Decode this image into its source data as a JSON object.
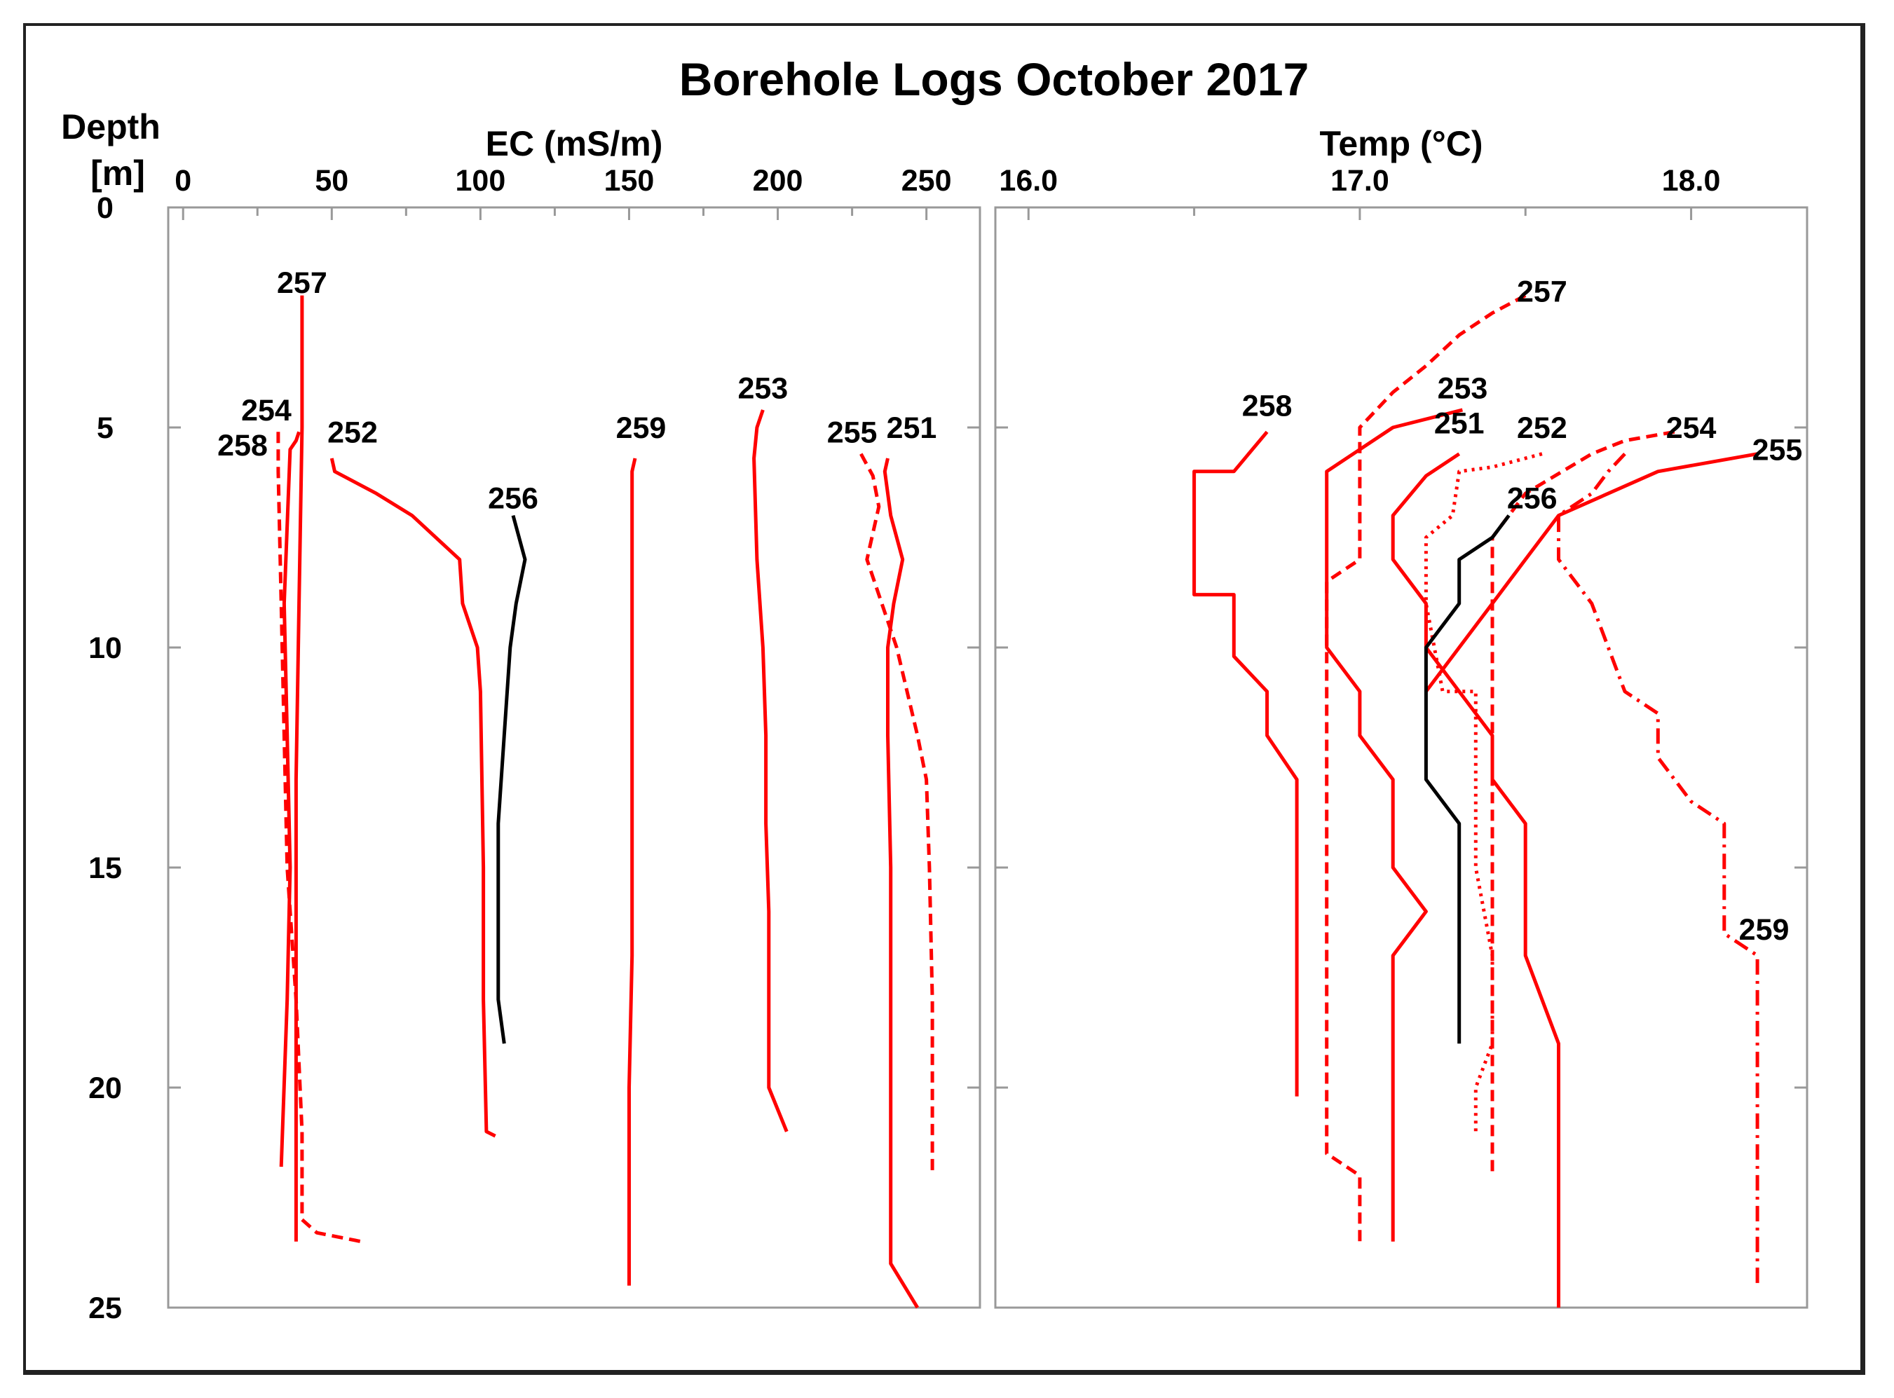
{
  "title": "Borehole Logs October 2017",
  "depth_label_line1": "Depth",
  "depth_label_line2": "[m]",
  "colors": {
    "red": "#ff0000",
    "black": "#000000",
    "frame": "#222222",
    "axis": "#999999"
  },
  "chart_data": [
    {
      "type": "line",
      "panel": "EC",
      "xlabel": "EC (mS/m)",
      "ylabel": "Depth [m]",
      "xlim": [
        -5,
        268
      ],
      "ylim": [
        0,
        25
      ],
      "y_inverted": true,
      "x_axis_position": "top",
      "grid": false,
      "xticks": [
        0,
        50,
        100,
        150,
        200,
        250
      ],
      "xtick_labels": [
        "0",
        "50",
        "100",
        "150",
        "200",
        "250"
      ],
      "yticks": [
        0,
        5,
        10,
        15,
        20,
        25
      ],
      "ytick_labels": [
        "0",
        "5",
        "10",
        "15",
        "20",
        "25"
      ],
      "series": [
        {
          "name": "257",
          "color": "#ff0000",
          "dash": "solid",
          "label_at": [
            40,
            1.7
          ],
          "points": [
            [
              40,
              2
            ],
            [
              40,
              5
            ],
            [
              39,
              9
            ],
            [
              38,
              13
            ],
            [
              38,
              17
            ],
            [
              38,
              21
            ],
            [
              38,
              23.5
            ]
          ]
        },
        {
          "name": "254",
          "color": "#ff0000",
          "dash": "solid",
          "label_at": [
            28,
            4.6
          ],
          "points": [
            [
              39,
              5.1
            ],
            [
              38,
              5.3
            ],
            [
              36,
              5.5
            ],
            [
              34,
              9
            ],
            [
              35,
              12
            ],
            [
              36,
              15
            ],
            [
              35,
              18
            ],
            [
              33,
              21.8
            ]
          ]
        },
        {
          "name": "258",
          "color": "#ff0000",
          "dash": "dash",
          "label_at": [
            20,
            5.4
          ],
          "points": [
            [
              32,
              5.1
            ],
            [
              32,
              6
            ],
            [
              33,
              9
            ],
            [
              34,
              12
            ],
            [
              35,
              15
            ],
            [
              38,
              18
            ],
            [
              40,
              21
            ],
            [
              40,
              23
            ],
            [
              45,
              23.3
            ],
            [
              60,
              23.5
            ]
          ]
        },
        {
          "name": "252",
          "color": "#ff0000",
          "dash": "solid",
          "label_at": [
            57,
            5.1
          ],
          "points": [
            [
              50,
              5.7
            ],
            [
              51,
              6
            ],
            [
              65,
              6.5
            ],
            [
              77,
              7
            ],
            [
              93,
              8
            ],
            [
              94,
              9
            ],
            [
              99,
              10
            ],
            [
              100,
              11
            ],
            [
              101,
              15
            ],
            [
              101,
              18
            ],
            [
              102,
              21
            ],
            [
              105,
              21.1
            ]
          ]
        },
        {
          "name": "256",
          "color": "#000000",
          "dash": "solid",
          "label_at": [
            111,
            6.6
          ],
          "points": [
            [
              111,
              7
            ],
            [
              115,
              8
            ],
            [
              112,
              9
            ],
            [
              110,
              10
            ],
            [
              108,
              12
            ],
            [
              106,
              14
            ],
            [
              106,
              16
            ],
            [
              106,
              18
            ],
            [
              108,
              19
            ]
          ]
        },
        {
          "name": "259",
          "color": "#ff0000",
          "dash": "solid",
          "label_at": [
            154,
            5
          ],
          "points": [
            [
              152,
              5.7
            ],
            [
              151,
              6
            ],
            [
              151,
              10
            ],
            [
              151,
              15
            ],
            [
              151,
              17
            ],
            [
              150,
              20
            ],
            [
              150,
              24.5
            ]
          ]
        },
        {
          "name": "253",
          "color": "#ff0000",
          "dash": "solid",
          "label_at": [
            195,
            4.1
          ],
          "points": [
            [
              195,
              4.6
            ],
            [
              193,
              5
            ],
            [
              192,
              5.7
            ],
            [
              193,
              8
            ],
            [
              195,
              10
            ],
            [
              196,
              12
            ],
            [
              196,
              14
            ],
            [
              197,
              16
            ],
            [
              197,
              18
            ],
            [
              197,
              20
            ],
            [
              203,
              21
            ]
          ]
        },
        {
          "name": "255",
          "color": "#ff0000",
          "dash": "dash",
          "label_at": [
            225,
            5.1
          ],
          "points": [
            [
              228,
              5.6
            ],
            [
              232,
              6.1
            ],
            [
              234,
              6.8
            ],
            [
              230,
              8
            ],
            [
              235,
              9
            ],
            [
              240,
              10
            ],
            [
              247,
              12
            ],
            [
              250,
              13
            ],
            [
              251,
              15
            ],
            [
              252,
              18
            ],
            [
              252,
              20
            ],
            [
              252,
              22
            ]
          ]
        },
        {
          "name": "251",
          "color": "#ff0000",
          "dash": "solid",
          "label_at": [
            245,
            5
          ],
          "points": [
            [
              237,
              5.7
            ],
            [
              236,
              6
            ],
            [
              238,
              7
            ],
            [
              242,
              8
            ],
            [
              239,
              9
            ],
            [
              237,
              10
            ],
            [
              237,
              12
            ],
            [
              238,
              15
            ],
            [
              238,
              20
            ],
            [
              238,
              24
            ],
            [
              247,
              25
            ]
          ]
        }
      ]
    },
    {
      "type": "line",
      "panel": "Temp",
      "xlabel": "Temp (°C)",
      "ylabel": "Depth [m]",
      "xlim": [
        15.9,
        18.35
      ],
      "ylim": [
        0,
        25
      ],
      "y_inverted": true,
      "x_axis_position": "top",
      "grid": false,
      "xticks": [
        16.0,
        17.0,
        18.0
      ],
      "xtick_labels": [
        "16.0",
        "17.0",
        "18.0"
      ],
      "minor_xticks": [
        16.5,
        17.5
      ],
      "yticks": [
        0,
        5,
        10,
        15,
        20,
        25
      ],
      "series": [
        {
          "name": "257",
          "color": "#ff0000",
          "dash": "dash",
          "label_at": [
            17.55,
            1.9
          ],
          "points": [
            [
              17.5,
              2
            ],
            [
              17.4,
              2.4
            ],
            [
              17.3,
              2.9
            ],
            [
              17.2,
              3.6
            ],
            [
              17.1,
              4.2
            ],
            [
              17.0,
              5
            ],
            [
              17.0,
              7
            ],
            [
              17.0,
              8
            ],
            [
              16.9,
              8.5
            ],
            [
              16.9,
              12
            ],
            [
              16.9,
              15
            ],
            [
              16.9,
              18
            ],
            [
              16.9,
              20
            ],
            [
              16.9,
              21.5
            ],
            [
              17.0,
              22
            ],
            [
              17.0,
              23.5
            ]
          ]
        },
        {
          "name": "258",
          "color": "#ff0000",
          "dash": "solid",
          "label_at": [
            16.72,
            4.5
          ],
          "points": [
            [
              16.72,
              5.1
            ],
            [
              16.62,
              6
            ],
            [
              16.5,
              6
            ],
            [
              16.5,
              8.8
            ],
            [
              16.62,
              8.8
            ],
            [
              16.62,
              10.2
            ],
            [
              16.72,
              11
            ],
            [
              16.72,
              12
            ],
            [
              16.81,
              13
            ],
            [
              16.81,
              15
            ],
            [
              16.81,
              18
            ],
            [
              16.81,
              20.2
            ]
          ]
        },
        {
          "name": "253",
          "color": "#ff0000",
          "dash": "solid",
          "label_at": [
            17.31,
            4.1
          ],
          "points": [
            [
              17.31,
              4.6
            ],
            [
              17.1,
              5
            ],
            [
              17.0,
              5.5
            ],
            [
              16.9,
              6
            ],
            [
              16.9,
              10
            ],
            [
              17.0,
              11
            ],
            [
              17.0,
              12
            ],
            [
              17.1,
              13
            ],
            [
              17.1,
              15
            ],
            [
              17.2,
              16
            ],
            [
              17.1,
              17
            ],
            [
              17.1,
              20
            ],
            [
              17.1,
              23.5
            ]
          ]
        },
        {
          "name": "251",
          "color": "#ff0000",
          "dash": "solid",
          "label_at": [
            17.3,
            4.9
          ],
          "points": [
            [
              17.3,
              5.6
            ],
            [
              17.2,
              6.1
            ],
            [
              17.1,
              7
            ],
            [
              17.1,
              8
            ],
            [
              17.2,
              9
            ],
            [
              17.2,
              10
            ],
            [
              17.4,
              12
            ],
            [
              17.4,
              13
            ],
            [
              17.5,
              14
            ],
            [
              17.5,
              17
            ],
            [
              17.6,
              19
            ],
            [
              17.6,
              25
            ]
          ]
        },
        {
          "name": "252",
          "color": "#ff0000",
          "dash": "dot",
          "label_at": [
            17.55,
            5
          ],
          "points": [
            [
              17.55,
              5.6
            ],
            [
              17.4,
              5.9
            ],
            [
              17.3,
              6
            ],
            [
              17.28,
              7
            ],
            [
              17.2,
              7.5
            ],
            [
              17.2,
              9
            ],
            [
              17.25,
              11
            ],
            [
              17.35,
              11
            ],
            [
              17.35,
              13
            ],
            [
              17.35,
              15
            ],
            [
              17.4,
              17
            ],
            [
              17.4,
              19
            ],
            [
              17.35,
              20
            ],
            [
              17.35,
              21
            ]
          ]
        },
        {
          "name": "254",
          "color": "#ff0000",
          "dash": "dash",
          "label_at": [
            18.0,
            5
          ],
          "points": [
            [
              17.95,
              5.1
            ],
            [
              17.8,
              5.3
            ],
            [
              17.7,
              5.6
            ],
            [
              17.5,
              6.5
            ],
            [
              17.4,
              7.5
            ],
            [
              17.4,
              10
            ],
            [
              17.4,
              15
            ],
            [
              17.4,
              20
            ],
            [
              17.4,
              22
            ]
          ]
        },
        {
          "name": "255",
          "color": "#ff0000",
          "dash": "solid",
          "label_at": [
            18.26,
            5.5
          ],
          "points": [
            [
              18.2,
              5.6
            ],
            [
              17.9,
              6
            ],
            [
              17.6,
              7
            ],
            [
              17.5,
              8
            ],
            [
              17.4,
              9
            ],
            [
              17.3,
              10
            ],
            [
              17.2,
              11
            ]
          ]
        },
        {
          "name": "259",
          "color": "#ff0000",
          "dash": "dashdot",
          "label_at": [
            18.22,
            16.4
          ],
          "points": [
            [
              17.8,
              5.6
            ],
            [
              17.75,
              6
            ],
            [
              17.7,
              6.5
            ],
            [
              17.6,
              7
            ],
            [
              17.6,
              8
            ],
            [
              17.7,
              9
            ],
            [
              17.75,
              10
            ],
            [
              17.8,
              11
            ],
            [
              17.9,
              11.5
            ],
            [
              17.9,
              12
            ],
            [
              17.9,
              12.5
            ],
            [
              18.0,
              13.5
            ],
            [
              18.1,
              14
            ],
            [
              18.1,
              16.5
            ],
            [
              18.2,
              17
            ],
            [
              18.2,
              20
            ],
            [
              18.2,
              24.5
            ]
          ]
        },
        {
          "name": "256",
          "color": "#000000",
          "dash": "solid",
          "label_at": [
            17.52,
            6.6
          ],
          "points": [
            [
              17.45,
              7
            ],
            [
              17.4,
              7.5
            ],
            [
              17.3,
              8
            ],
            [
              17.3,
              9
            ],
            [
              17.2,
              10
            ],
            [
              17.2,
              12
            ],
            [
              17.2,
              13
            ],
            [
              17.3,
              14
            ],
            [
              17.3,
              16
            ],
            [
              17.3,
              19
            ]
          ]
        }
      ]
    }
  ]
}
